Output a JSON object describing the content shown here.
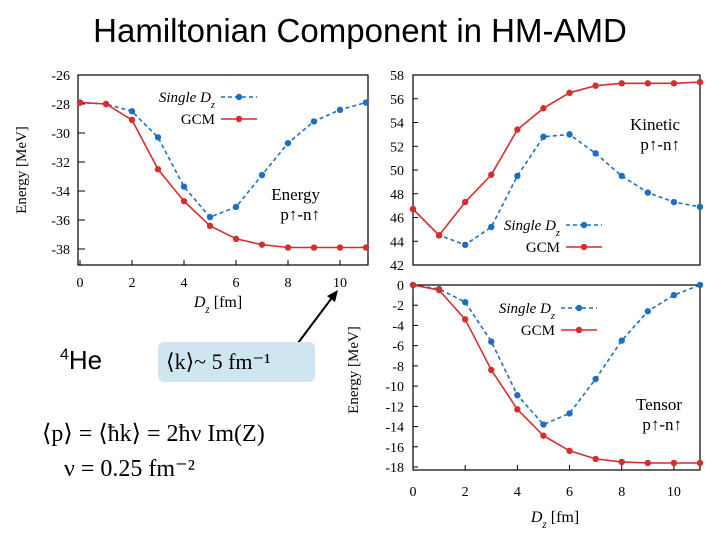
{
  "slide": {
    "title": "Hamiltonian Component in HM-AMD",
    "nucleus_mass_number": "4",
    "nucleus_symbol": "He",
    "k_estimate": "⟨k⟩~ 5 fm⁻¹",
    "equation_momentum": "⟨p⟩ = ⟨ħk⟩ = 2ħν Im(Z)",
    "equation_nu": "ν = 0.25 fm⁻²"
  },
  "colors": {
    "single": "#1f6fbf",
    "gcm": "#d32f2f"
  },
  "chart_data": [
    {
      "type": "line",
      "id": "energy",
      "title": "",
      "annotation": [
        "Energy",
        "p↑-n↑"
      ],
      "xlabel": "D_z [fm]",
      "ylabel": "Energy [MeV]",
      "xlim": [
        0,
        11
      ],
      "ylim": [
        -39,
        -26
      ],
      "xticks": [
        0,
        2,
        4,
        6,
        8,
        10
      ],
      "yticks": [
        -38,
        -36,
        -34,
        -32,
        -30,
        -28,
        -26
      ],
      "series": [
        {
          "name": "Single D_z",
          "style": "dashed",
          "x": [
            0,
            1,
            2,
            3,
            4,
            5,
            6,
            7,
            8,
            9,
            10,
            11
          ],
          "values": [
            -27.9,
            -28.0,
            -28.5,
            -30.3,
            -33.7,
            -35.8,
            -35.1,
            -32.9,
            -30.7,
            -29.2,
            -28.4,
            -27.9
          ]
        },
        {
          "name": "GCM",
          "style": "solid",
          "x": [
            0,
            1,
            2,
            3,
            4,
            5,
            6,
            7,
            8,
            9,
            10,
            11
          ],
          "values": [
            -27.9,
            -28.0,
            -29.1,
            -32.5,
            -34.7,
            -36.4,
            -37.3,
            -37.7,
            -37.9,
            -37.9,
            -37.9,
            -37.9
          ]
        }
      ]
    },
    {
      "type": "line",
      "id": "kinetic",
      "title": "",
      "annotation": [
        "Kinetic",
        "p↑-n↑"
      ],
      "xlabel": "",
      "ylabel": "",
      "xlim": [
        0,
        11
      ],
      "ylim": [
        42,
        58
      ],
      "xticks": [],
      "yticks": [
        42,
        44,
        46,
        48,
        50,
        52,
        54,
        56,
        58
      ],
      "series": [
        {
          "name": "Single D_z",
          "style": "dashed",
          "x": [
            0,
            1,
            2,
            3,
            4,
            5,
            6,
            7,
            8,
            9,
            10,
            11
          ],
          "values": [
            46.7,
            44.5,
            43.7,
            45.2,
            49.5,
            52.8,
            53.0,
            51.4,
            49.5,
            48.1,
            47.3,
            46.9
          ]
        },
        {
          "name": "GCM",
          "style": "solid",
          "x": [
            0,
            1,
            2,
            3,
            4,
            5,
            6,
            7,
            8,
            9,
            10,
            11
          ],
          "values": [
            46.7,
            44.5,
            47.3,
            49.6,
            53.4,
            55.2,
            56.5,
            57.1,
            57.3,
            57.3,
            57.3,
            57.4
          ]
        }
      ]
    },
    {
      "type": "line",
      "id": "tensor",
      "title": "",
      "annotation": [
        "Tensor",
        "p↑-n↑"
      ],
      "xlabel": "D_z [fm]",
      "ylabel": "Energy [MeV]",
      "xlim": [
        0,
        11
      ],
      "ylim": [
        -18,
        0
      ],
      "xticks": [
        0,
        2,
        4,
        6,
        8,
        10
      ],
      "yticks": [
        0,
        -2,
        -4,
        -6,
        -8,
        -10,
        -12,
        -14,
        -16,
        -18
      ],
      "series": [
        {
          "name": "Single D_z",
          "style": "dashed",
          "x": [
            0,
            1,
            2,
            3,
            4,
            5,
            6,
            7,
            8,
            9,
            10,
            11
          ],
          "values": [
            0.0,
            -0.4,
            -1.7,
            -5.6,
            -10.9,
            -13.8,
            -12.7,
            -9.3,
            -5.5,
            -2.6,
            -1.0,
            0.0
          ]
        },
        {
          "name": "GCM",
          "style": "solid",
          "x": [
            0,
            1,
            2,
            3,
            4,
            5,
            6,
            7,
            8,
            9,
            10,
            11
          ],
          "values": [
            0.0,
            -0.5,
            -3.4,
            -8.4,
            -12.3,
            -14.9,
            -16.4,
            -17.2,
            -17.5,
            -17.6,
            -17.6,
            -17.6
          ]
        }
      ]
    }
  ]
}
